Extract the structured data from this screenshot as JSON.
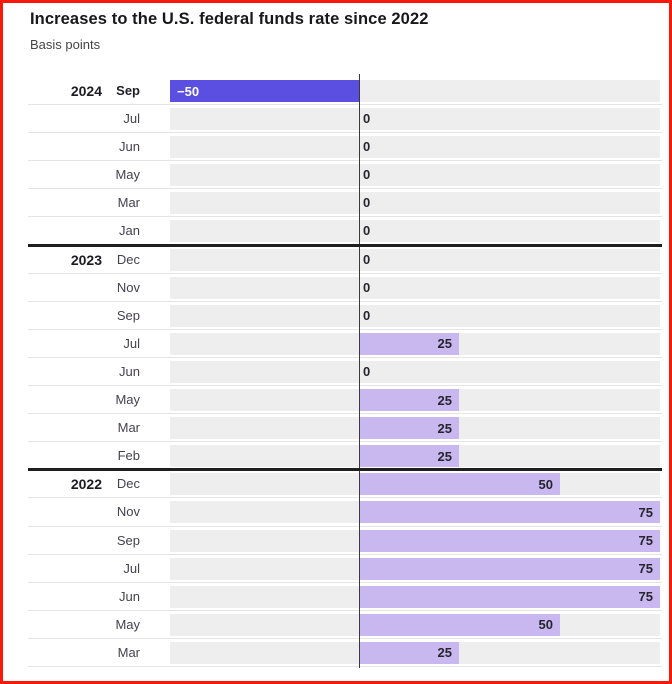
{
  "title": "Increases to the U.S. federal funds rate since 2022",
  "subtitle": "Basis points",
  "chart_data": {
    "type": "bar",
    "orientation": "horizontal",
    "title": "Increases to the U.S. federal funds rate since 2022",
    "subtitle": "Basis points",
    "unit": "basis points",
    "xlim": [
      -50,
      75
    ],
    "axis_at_zero": true,
    "grid": "off",
    "legend": "none",
    "rows": [
      {
        "year": "2024",
        "month": "Sep",
        "value": -50,
        "value_label": "−50",
        "month_bold": true
      },
      {
        "year": "",
        "month": "Jul",
        "value": 0,
        "value_label": "0"
      },
      {
        "year": "",
        "month": "Jun",
        "value": 0,
        "value_label": "0"
      },
      {
        "year": "",
        "month": "May",
        "value": 0,
        "value_label": "0"
      },
      {
        "year": "",
        "month": "Mar",
        "value": 0,
        "value_label": "0"
      },
      {
        "year": "",
        "month": "Jan",
        "value": 0,
        "value_label": "0"
      },
      {
        "year": "2023",
        "month": "Dec",
        "value": 0,
        "value_label": "0",
        "section_start": true
      },
      {
        "year": "",
        "month": "Nov",
        "value": 0,
        "value_label": "0"
      },
      {
        "year": "",
        "month": "Sep",
        "value": 0,
        "value_label": "0"
      },
      {
        "year": "",
        "month": "Jul",
        "value": 25,
        "value_label": "25"
      },
      {
        "year": "",
        "month": "Jun",
        "value": 0,
        "value_label": "0"
      },
      {
        "year": "",
        "month": "May",
        "value": 25,
        "value_label": "25"
      },
      {
        "year": "",
        "month": "Mar",
        "value": 25,
        "value_label": "25"
      },
      {
        "year": "",
        "month": "Feb",
        "value": 25,
        "value_label": "25"
      },
      {
        "year": "2022",
        "month": "Dec",
        "value": 50,
        "value_label": "50",
        "section_start": true
      },
      {
        "year": "",
        "month": "Nov",
        "value": 75,
        "value_label": "75"
      },
      {
        "year": "",
        "month": "Sep",
        "value": 75,
        "value_label": "75"
      },
      {
        "year": "",
        "month": "Jul",
        "value": 75,
        "value_label": "75"
      },
      {
        "year": "",
        "month": "Jun",
        "value": 75,
        "value_label": "75"
      },
      {
        "year": "",
        "month": "May",
        "value": 50,
        "value_label": "50"
      },
      {
        "year": "",
        "month": "Mar",
        "value": 25,
        "value_label": "25"
      }
    ],
    "colors": {
      "negative_bar": "#5b4fe2",
      "positive_bar": "#c9b8f0",
      "track": "#eeeeee",
      "axis_line": "#3a3a3a",
      "row_separator": "#e4e4e4",
      "section_line": "#1f1f1f",
      "frame_border": "#f9190b",
      "negative_value_text": "#ffffff",
      "value_text": "#26242c",
      "year_text": "#1c1c21",
      "month_text": "#45414e",
      "title_text": "#18181b",
      "subtitle_text": "#454545"
    }
  }
}
